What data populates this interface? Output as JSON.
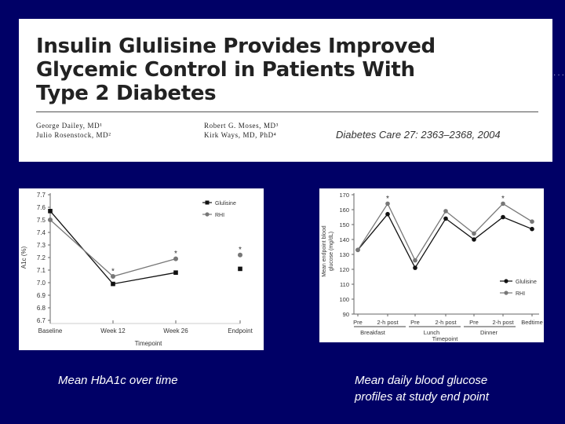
{
  "article": {
    "title_lines": [
      "Insulin Glulisine Provides Improved",
      "Glycemic Control in Patients With",
      "Type 2 Diabetes"
    ],
    "authors_left": [
      "George Dailey, MD¹",
      "Julio Rosenstock, MD²"
    ],
    "authors_right": [
      "Robert G. Moses, MD³",
      "Kirk Ways, MD, PhD⁴"
    ],
    "citation": "Diabetes Care 27: 2363–2368, 2004"
  },
  "captions": {
    "left": "Mean HbA1c over time",
    "right": [
      "Mean daily blood glucose",
      "profiles at study end point"
    ]
  },
  "colors": {
    "background": "#000066",
    "glulisine": "#111111",
    "rhi": "#777777"
  },
  "chart_data": [
    {
      "type": "line",
      "title": "",
      "xlabel": "Timepoint",
      "ylabel": "A1c (%)",
      "categories": [
        "Baseline",
        "Week 12",
        "Week 26",
        "Endpoint"
      ],
      "yticks": [
        "6.7",
        "6.8",
        "6.9",
        "7.0",
        "7.1",
        "7.2",
        "7.3",
        "7.4",
        "7.5",
        "7.6",
        "7.7"
      ],
      "ylim": [
        6.7,
        7.7
      ],
      "legend": [
        "Glulisine",
        "RHI"
      ],
      "legend_position": "top-right",
      "series": [
        {
          "name": "Glulisine",
          "values": [
            7.57,
            6.99,
            7.08,
            7.11
          ]
        },
        {
          "name": "RHI",
          "values": [
            7.5,
            7.05,
            7.19,
            7.22
          ]
        }
      ],
      "annotations": [
        {
          "category": "Week 12",
          "y": 7.11,
          "text": "*"
        },
        {
          "category": "Week 26",
          "y": 7.25,
          "text": "*"
        },
        {
          "category": "Endpoint",
          "y": 7.28,
          "text": "*"
        }
      ]
    },
    {
      "type": "line",
      "title": "",
      "xlabel": "Timepoint",
      "ylabel": "Mean endpoint blood glucose (mg/dL)",
      "ylabel_lines": [
        "Mean endpoint blood",
        "glucose (mg/dL)"
      ],
      "categories": [
        "Pre",
        "2-h post",
        "Pre",
        "2-h post",
        "Pre",
        "2-h post",
        "Bedtime"
      ],
      "groups": [
        "Breakfast",
        "Lunch",
        "Dinner"
      ],
      "yticks": [
        "90",
        "100",
        "110",
        "120",
        "130",
        "140",
        "150",
        "160",
        "170"
      ],
      "ylim": [
        90,
        170
      ],
      "legend": [
        "Glulisine",
        "RHI"
      ],
      "legend_position": "bottom-right",
      "series": [
        {
          "name": "Glulisine",
          "values": [
            133,
            157,
            121,
            154,
            140,
            155,
            147
          ]
        },
        {
          "name": "RHI",
          "values": [
            133,
            164,
            126,
            159,
            144,
            164,
            152
          ]
        }
      ],
      "annotations": [
        {
          "category_index": 1,
          "y": 168,
          "text": "*"
        },
        {
          "category_index": 5,
          "y": 168,
          "text": "*"
        }
      ]
    }
  ]
}
